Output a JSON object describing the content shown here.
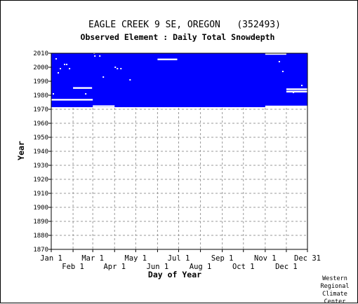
{
  "chart_data": {
    "type": "heatmap",
    "title": "EAGLE CREEK 9 SE, OREGON   (352493)",
    "subtitle": "Observed Element : Daily Total Snowdepth",
    "xlabel": "Day of Year",
    "ylabel": "Year",
    "x_range_days": [
      1,
      365
    ],
    "ylim": [
      1870,
      2010
    ],
    "yticks": [
      1870,
      1880,
      1890,
      1900,
      1910,
      1920,
      1930,
      1940,
      1950,
      1960,
      1970,
      1980,
      1990,
      2000,
      2010
    ],
    "xticks_top_row": [
      {
        "label": "Jan 1",
        "day": 1
      },
      {
        "label": "Mar 1",
        "day": 60
      },
      {
        "label": "May 1",
        "day": 121
      },
      {
        "label": "Jul 1",
        "day": 182
      },
      {
        "label": "Sep 1",
        "day": 244
      },
      {
        "label": "Nov 1",
        "day": 305
      },
      {
        "label": "Dec 31",
        "day": 365
      }
    ],
    "xticks_bottom_row": [
      {
        "label": "Feb 1",
        "day": 32
      },
      {
        "label": "Apr 1",
        "day": 91
      },
      {
        "label": "Jun 1",
        "day": 152
      },
      {
        "label": "Aug 1",
        "day": 213
      },
      {
        "label": "Oct 1",
        "day": 274
      },
      {
        "label": "Dec 1",
        "day": 335
      }
    ],
    "grid": true,
    "grid_style": "dashed",
    "record_color": "#0000ff",
    "record_block": {
      "year_start": 1971.5,
      "year_end": 2010,
      "day_start": 1,
      "day_end": 365
    },
    "missing_segments": [
      {
        "year": 1976.8,
        "day_start": 1,
        "day_end": 60
      },
      {
        "year": 1985.2,
        "day_start": 32,
        "day_end": 59
      },
      {
        "year": 1972.2,
        "day_start": 60,
        "day_end": 91
      },
      {
        "year": 2005.6,
        "day_start": 152,
        "day_end": 180
      },
      {
        "year": 2009.5,
        "day_start": 305,
        "day_end": 335
      },
      {
        "year": 1984.3,
        "day_start": 335,
        "day_end": 365
      },
      {
        "year": 1982.6,
        "day_start": 335,
        "day_end": 365
      },
      {
        "year": 1972.0,
        "day_start": 305,
        "day_end": 365
      }
    ],
    "missing_points": [
      {
        "year": 2006,
        "day": 8
      },
      {
        "year": 2002,
        "day": 20
      },
      {
        "year": 2002,
        "day": 23
      },
      {
        "year": 1999,
        "day": 14
      },
      {
        "year": 1996,
        "day": 11
      },
      {
        "year": 1999,
        "day": 27
      },
      {
        "year": 2008,
        "day": 63
      },
      {
        "year": 2008,
        "day": 70
      },
      {
        "year": 1999,
        "day": 95
      },
      {
        "year": 1999,
        "day": 100
      },
      {
        "year": 2000,
        "day": 92
      },
      {
        "year": 1991,
        "day": 113
      },
      {
        "year": 1993,
        "day": 75
      },
      {
        "year": 1981,
        "day": 4
      },
      {
        "year": 2004,
        "day": 325
      },
      {
        "year": 1997,
        "day": 330
      },
      {
        "year": 1987,
        "day": 357
      },
      {
        "year": 1982,
        "day": 345
      },
      {
        "year": 1981,
        "day": 50
      },
      {
        "year": 2010,
        "day": 62
      }
    ]
  },
  "credit": [
    "Western",
    "Regional",
    "Climate",
    "Center"
  ],
  "colors": {
    "record": "#0000ff",
    "grid": "#9a9a9a",
    "axis": "#000000",
    "background": "#ffffff"
  }
}
